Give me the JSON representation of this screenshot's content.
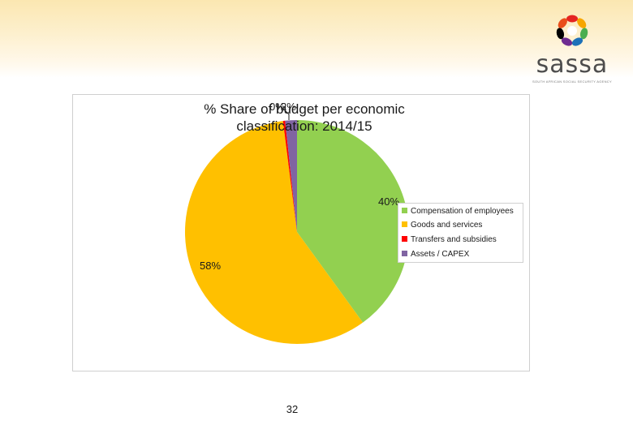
{
  "slide": {
    "page_number": "32"
  },
  "logo": {
    "word": "sassa",
    "subtitle": "SOUTH AFRICAN SOCIAL SECURITY AGENCY",
    "hand_colors": [
      "#e52421",
      "#f7a600",
      "#4bae4f",
      "#1d71b8",
      "#6f2c91",
      "#000000",
      "#e94e1b"
    ]
  },
  "colors": {
    "compensation": "#92d050",
    "goods": "#ffc000",
    "transfers": "#ff0000",
    "assets": "#8064a2"
  },
  "chart_data": {
    "type": "pie",
    "title_line1": "% Share of budget per economic",
    "title_line2": "classification: 2014/15",
    "slices": [
      {
        "label": "Compensation of employees",
        "value": 40,
        "color": "#92d050"
      },
      {
        "label": "Goods and services",
        "value": 58,
        "color": "#ffc000"
      },
      {
        "label": "Transfers and subsidies",
        "value": 0.3,
        "color": "#ff0000"
      },
      {
        "label": "Assets / CAPEX",
        "value": 1.7,
        "color": "#8064a2"
      }
    ],
    "data_labels": {
      "compensation": "40%",
      "goods": "58%",
      "transfers": "0%",
      "assets": "2%"
    },
    "legend": {
      "position": "right",
      "items": [
        "Compensation of employees",
        "Goods and services",
        "Transfers and subsidies",
        "Assets / CAPEX"
      ]
    }
  }
}
